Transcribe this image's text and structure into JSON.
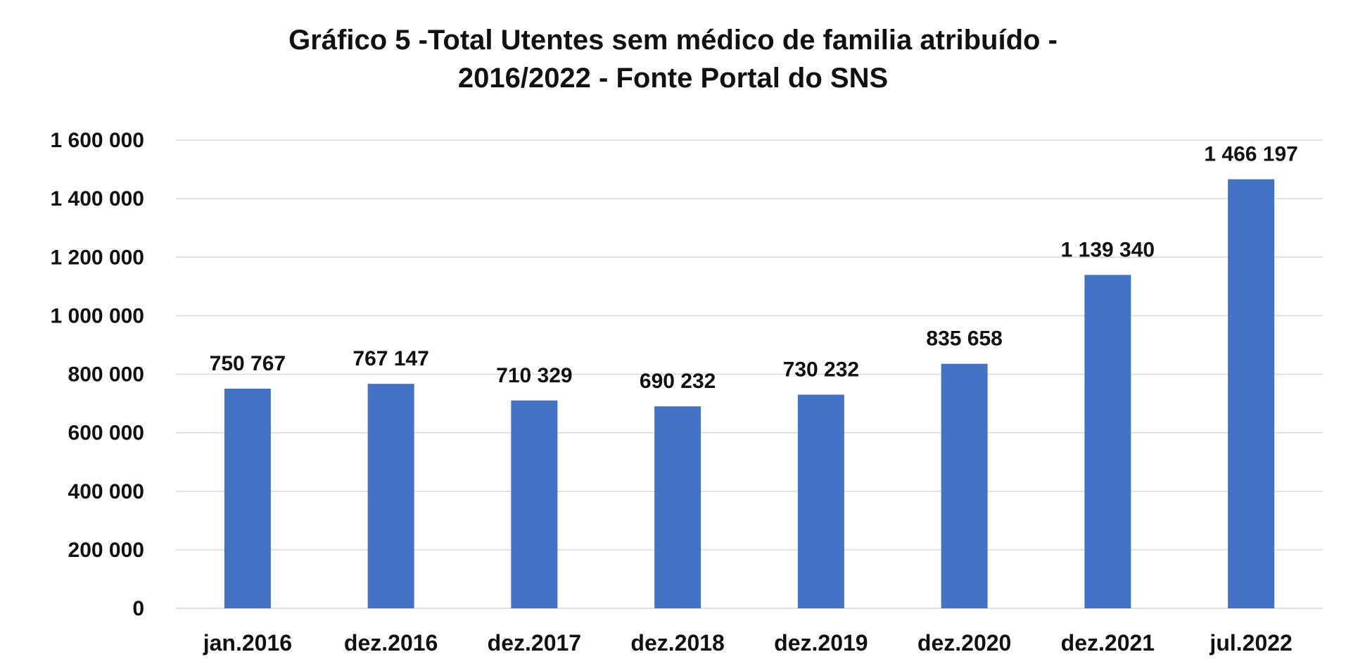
{
  "chart_data": {
    "type": "bar",
    "title_lines": [
      "Gráfico 5 -Total Utentes sem médico de familia atribuído -",
      "2016/2022 - Fonte Portal do SNS"
    ],
    "categories": [
      "jan.2016",
      "dez.2016",
      "dez.2017",
      "dez.2018",
      "dez.2019",
      "dez.2020",
      "dez.2021",
      "jul.2022"
    ],
    "values": [
      750767,
      767147,
      710329,
      690232,
      730232,
      835658,
      1139340,
      1466197
    ],
    "data_labels": [
      "750 767",
      "767 147",
      "710 329",
      "690 232",
      "730 232",
      "835 658",
      "1 139 340",
      "1 466 197"
    ],
    "ylim": [
      0,
      1600000
    ],
    "yticks": [
      0,
      200000,
      400000,
      600000,
      800000,
      1000000,
      1200000,
      1400000,
      1600000
    ],
    "ytick_labels": [
      "0",
      "200 000",
      "400 000",
      "600 000",
      "800 000",
      "1 000 000",
      "1 200 000",
      "1 400 000",
      "1 600 000"
    ],
    "xlabel": "",
    "ylabel": "",
    "grid": true,
    "legend": "none",
    "colors": {
      "bar": "#4472C4",
      "grid": "#d9d9d9",
      "text": "#111111"
    }
  }
}
